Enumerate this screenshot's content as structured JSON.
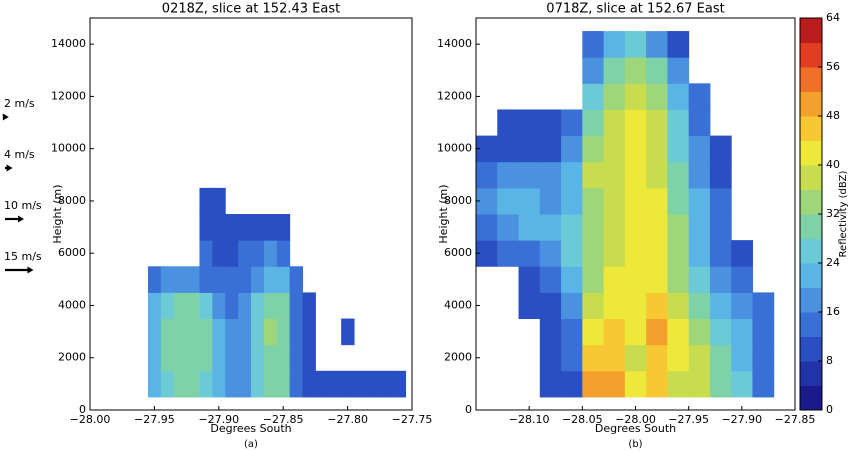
{
  "chart_data": [
    {
      "type": "heatmap",
      "title": "0218Z, slice at 152.43 East",
      "xlabel": "Degrees South",
      "ylabel": "Height (m)",
      "caption": "(a)",
      "xlim": [
        -28.0,
        -27.75
      ],
      "xticks": [
        {
          "value": -28.0,
          "label": "−28.00"
        },
        {
          "value": -27.95,
          "label": "−27.95"
        },
        {
          "value": -27.9,
          "label": "−27.90"
        },
        {
          "value": -27.85,
          "label": "−27.85"
        },
        {
          "value": -27.8,
          "label": "−27.80"
        },
        {
          "value": -27.75,
          "label": "−27.75"
        }
      ],
      "ylim": [
        0,
        15000
      ],
      "yticks": [
        0,
        2000,
        4000,
        6000,
        8000,
        10000,
        12000,
        14000
      ],
      "x": [
        -27.95,
        -27.94,
        -27.93,
        -27.92,
        -27.91,
        -27.9,
        -27.89,
        -27.88,
        -27.87,
        -27.86,
        -27.85,
        -27.84,
        -27.83,
        -27.82,
        -27.81,
        -27.8,
        -27.79,
        -27.78,
        -27.77,
        -27.76
      ],
      "y": [
        1000,
        2000,
        3000,
        4000,
        5000,
        6000,
        7000,
        8000
      ],
      "values": [
        [
          20,
          26,
          28,
          28,
          26,
          22,
          18,
          16,
          24,
          28,
          28,
          14,
          8,
          8,
          8,
          8,
          8,
          8,
          8,
          8
        ],
        [
          22,
          28,
          30,
          30,
          28,
          22,
          18,
          18,
          26,
          30,
          30,
          14,
          10,
          null,
          null,
          null,
          null,
          null,
          null,
          null
        ],
        [
          22,
          28,
          30,
          30,
          28,
          22,
          16,
          18,
          26,
          32,
          30,
          14,
          10,
          null,
          null,
          10,
          null,
          null,
          null,
          null
        ],
        [
          20,
          26,
          28,
          28,
          24,
          18,
          14,
          16,
          24,
          30,
          28,
          12,
          10,
          null,
          null,
          null,
          null,
          null,
          null,
          null
        ],
        [
          14,
          16,
          18,
          18,
          14,
          12,
          12,
          14,
          18,
          22,
          20,
          12,
          null,
          null,
          null,
          null,
          null,
          null,
          null,
          null
        ],
        [
          null,
          null,
          null,
          null,
          12,
          10,
          10,
          12,
          14,
          16,
          14,
          null,
          null,
          null,
          null,
          null,
          null,
          null,
          null,
          null
        ],
        [
          null,
          null,
          null,
          null,
          8,
          8,
          8,
          8,
          10,
          10,
          8,
          null,
          null,
          null,
          null,
          null,
          null,
          null,
          null,
          null
        ],
        [
          null,
          null,
          null,
          null,
          8,
          8,
          null,
          null,
          null,
          null,
          null,
          null,
          null,
          null,
          null,
          null,
          null,
          null,
          null,
          null
        ]
      ],
      "wind_legend": [
        {
          "value": 2,
          "label": "2 m/s"
        },
        {
          "value": 4,
          "label": "4 m/s"
        },
        {
          "value": 10,
          "label": "10 m/s"
        },
        {
          "value": 15,
          "label": "15 m/s"
        }
      ]
    },
    {
      "type": "heatmap",
      "title": "0718Z, slice at 152.67 East",
      "xlabel": "Degrees South",
      "ylabel": "Height (m)",
      "caption": "(b)",
      "xlim": [
        -28.15,
        -27.85
      ],
      "xticks": [
        {
          "value": -28.1,
          "label": "−28.10"
        },
        {
          "value": -28.05,
          "label": "−28.05"
        },
        {
          "value": -28.0,
          "label": "−28.00"
        },
        {
          "value": -27.95,
          "label": "−27.95"
        },
        {
          "value": -27.9,
          "label": "−27.90"
        },
        {
          "value": -27.85,
          "label": "−27.85"
        }
      ],
      "ylim": [
        0,
        15000
      ],
      "yticks": [
        0,
        2000,
        4000,
        6000,
        8000,
        10000,
        12000,
        14000
      ],
      "x": [
        -28.14,
        -28.12,
        -28.1,
        -28.08,
        -28.06,
        -28.04,
        -28.02,
        -28.0,
        -27.98,
        -27.96,
        -27.94,
        -27.92,
        -27.9,
        -27.88
      ],
      "y": [
        1000,
        2000,
        3000,
        4000,
        5000,
        6000,
        7000,
        8000,
        9000,
        10000,
        11000,
        12000,
        13000,
        14000
      ],
      "values": [
        [
          null,
          null,
          null,
          8,
          8,
          48,
          50,
          40,
          44,
          36,
          38,
          28,
          24,
          12
        ],
        [
          null,
          null,
          null,
          10,
          12,
          44,
          46,
          38,
          46,
          40,
          36,
          28,
          22,
          14
        ],
        [
          null,
          null,
          null,
          10,
          12,
          40,
          44,
          40,
          48,
          40,
          32,
          24,
          20,
          14
        ],
        [
          null,
          null,
          8,
          10,
          16,
          36,
          42,
          42,
          44,
          38,
          30,
          22,
          18,
          12
        ],
        [
          null,
          null,
          8,
          12,
          20,
          32,
          40,
          42,
          40,
          34,
          26,
          18,
          12,
          null
        ],
        [
          10,
          12,
          14,
          16,
          24,
          32,
          38,
          42,
          40,
          32,
          22,
          14,
          8,
          null
        ],
        [
          14,
          18,
          20,
          20,
          24,
          32,
          38,
          40,
          40,
          32,
          22,
          14,
          null,
          null
        ],
        [
          18,
          22,
          22,
          18,
          22,
          34,
          38,
          42,
          40,
          30,
          20,
          12,
          null,
          null
        ],
        [
          14,
          16,
          18,
          16,
          22,
          36,
          38,
          42,
          38,
          28,
          18,
          10,
          null,
          null
        ],
        [
          8,
          10,
          10,
          10,
          16,
          34,
          38,
          40,
          36,
          26,
          16,
          8,
          null,
          null
        ],
        [
          null,
          8,
          8,
          10,
          12,
          30,
          36,
          40,
          36,
          24,
          14,
          null,
          null,
          null
        ],
        [
          null,
          null,
          null,
          null,
          null,
          24,
          34,
          38,
          34,
          22,
          12,
          null,
          null,
          null
        ],
        [
          null,
          null,
          null,
          null,
          null,
          18,
          28,
          34,
          28,
          16,
          null,
          null,
          null,
          null
        ],
        [
          null,
          null,
          null,
          null,
          null,
          12,
          20,
          24,
          16,
          10,
          null,
          null,
          null,
          null
        ]
      ],
      "colorbar": {
        "label": "Reflectivity (dBZ)",
        "clim": [
          0,
          64
        ],
        "ticks": [
          0,
          8,
          16,
          24,
          32,
          40,
          48,
          56,
          64
        ],
        "colors": [
          "#1a1a8c",
          "#2233a8",
          "#2a4fc2",
          "#3a6fd6",
          "#4a92e0",
          "#5ab4e6",
          "#6ccad6",
          "#7ed2a8",
          "#a0d67a",
          "#c8dc50",
          "#eee83a",
          "#f8c832",
          "#f4a02c",
          "#f07028",
          "#e23c22",
          "#b81c1c"
        ]
      }
    }
  ]
}
